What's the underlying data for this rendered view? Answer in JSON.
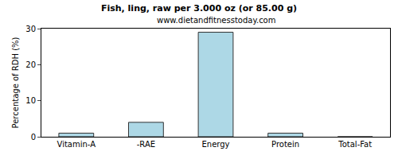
{
  "chart_data": {
    "type": "bar",
    "title": "Fish, ling, raw per 3.000 oz (or 85.00 g)",
    "subtitle": "www.dietandfitnesstoday.com",
    "y_label": "Percentage of RDH (%)",
    "categories": [
      "Vitamin-A",
      "-RAE",
      "Energy",
      "Protein",
      "Total-Fat"
    ],
    "values": [
      1,
      4,
      29,
      1,
      0
    ],
    "color": "#add8e6",
    "ylim": [
      0,
      30
    ],
    "yticks": [
      0,
      10,
      20,
      30
    ],
    "grid": false
  }
}
